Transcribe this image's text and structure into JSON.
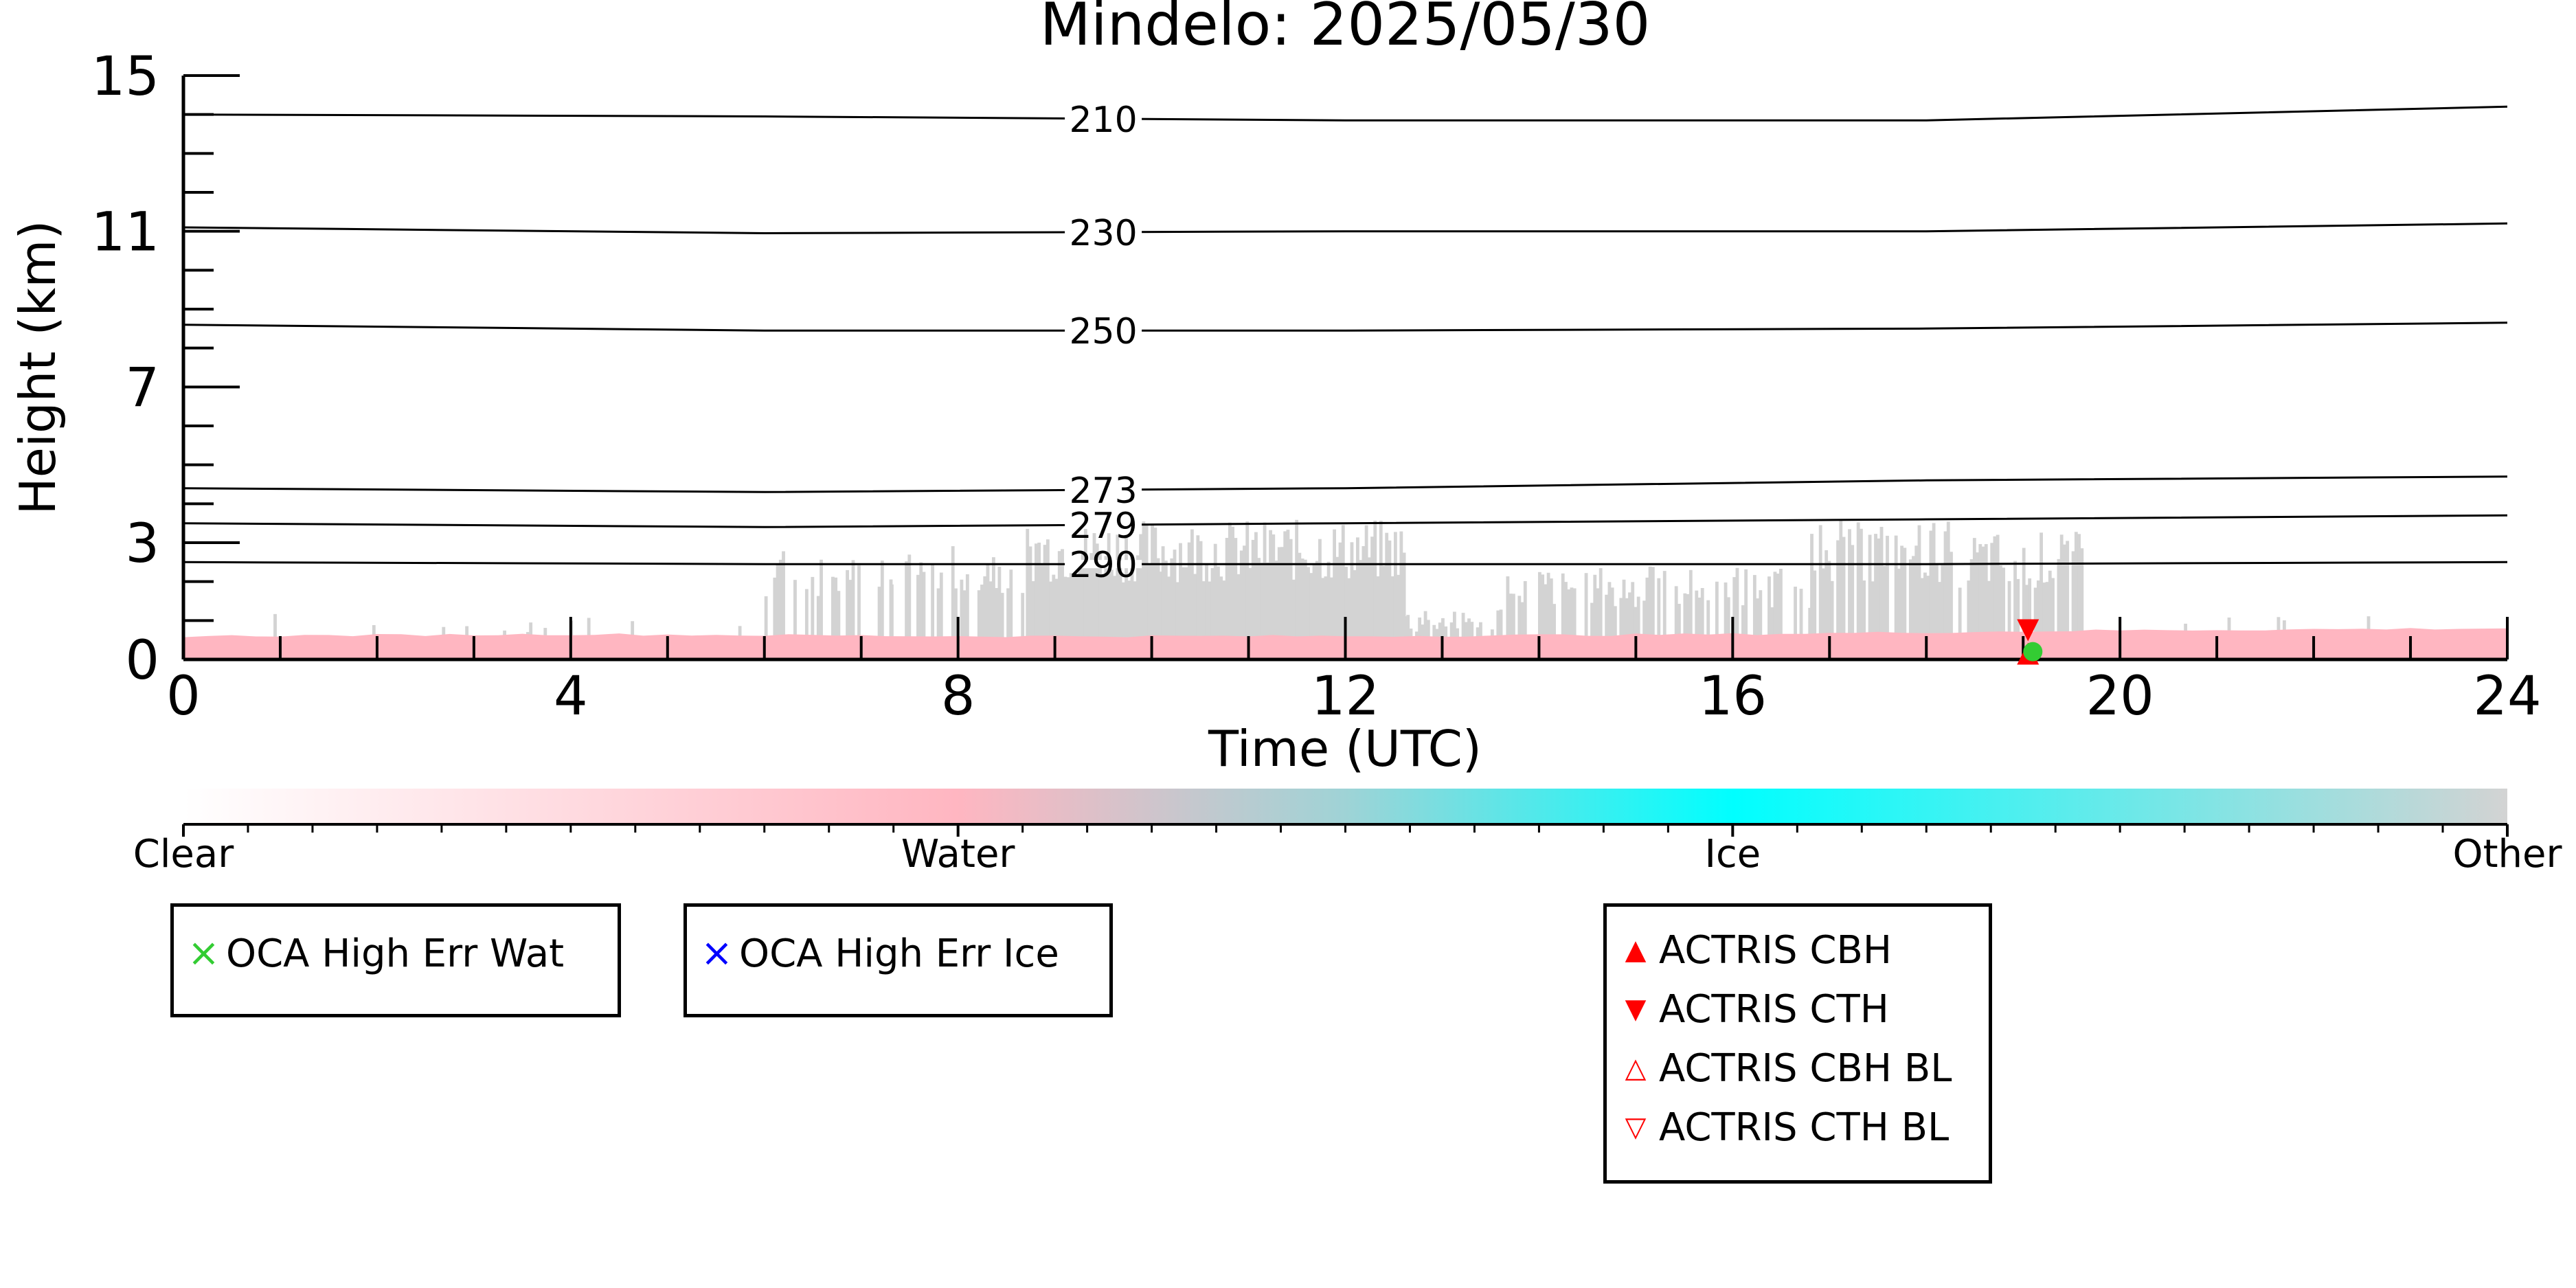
{
  "chart_data": {
    "type": "heatmap",
    "title": "Mindelo: 2025/05/30",
    "xlabel": "Time (UTC)",
    "ylabel": "Height (km)",
    "xlim": [
      0,
      24
    ],
    "ylim": [
      0,
      15
    ],
    "x_ticks": [
      "0",
      "4",
      "8",
      "12",
      "16",
      "20",
      "24"
    ],
    "y_ticks": [
      "0",
      "3",
      "7",
      "11",
      "15"
    ],
    "grid": false,
    "classes": [
      {
        "name": "Clear",
        "color": "#ffffff"
      },
      {
        "name": "Water",
        "color": "#ffb6c1"
      },
      {
        "name": "Ice",
        "color": "#00ffff"
      },
      {
        "name": "Other",
        "color": "#d3d3d3"
      }
    ],
    "water_layer_top_km": [
      {
        "time": 0,
        "value": 0.6
      },
      {
        "time": 4,
        "value": 0.65
      },
      {
        "time": 8,
        "value": 0.6
      },
      {
        "time": 12,
        "value": 0.6
      },
      {
        "time": 16,
        "value": 0.65
      },
      {
        "time": 20,
        "value": 0.75
      },
      {
        "time": 24,
        "value": 0.8
      }
    ],
    "other_regions": [
      {
        "start": 0.3,
        "end": 6.0,
        "top_km": 1.2,
        "density": 0.06
      },
      {
        "start": 6.0,
        "end": 7.3,
        "top_km": 2.9,
        "density": 0.35
      },
      {
        "start": 7.3,
        "end": 8.7,
        "top_km": 3.1,
        "density": 0.6
      },
      {
        "start": 8.7,
        "end": 10.1,
        "top_km": 3.6,
        "density": 1.0
      },
      {
        "start": 10.1,
        "end": 12.6,
        "top_km": 3.6,
        "density": 1.0
      },
      {
        "start": 12.6,
        "end": 13.6,
        "top_km": 1.3,
        "density": 0.7
      },
      {
        "start": 13.6,
        "end": 16.8,
        "top_km": 2.4,
        "density": 0.6
      },
      {
        "start": 16.8,
        "end": 18.3,
        "top_km": 3.6,
        "density": 0.85
      },
      {
        "start": 18.3,
        "end": 19.6,
        "top_km": 3.3,
        "density": 0.8
      },
      {
        "start": 20.0,
        "end": 24.0,
        "top_km": 1.2,
        "density": 0.05
      }
    ],
    "isotherms": [
      {
        "label": "210",
        "heights_km": [
          {
            "time": 0,
            "value": 14.0
          },
          {
            "time": 6,
            "value": 13.95
          },
          {
            "time": 12,
            "value": 13.85
          },
          {
            "time": 18,
            "value": 13.85
          },
          {
            "time": 24,
            "value": 14.2
          }
        ]
      },
      {
        "label": "230",
        "heights_km": [
          {
            "time": 0,
            "value": 11.1
          },
          {
            "time": 6,
            "value": 10.95
          },
          {
            "time": 12,
            "value": 11.0
          },
          {
            "time": 18,
            "value": 11.0
          },
          {
            "time": 24,
            "value": 11.2
          }
        ]
      },
      {
        "label": "250",
        "heights_km": [
          {
            "time": 0,
            "value": 8.6
          },
          {
            "time": 6,
            "value": 8.45
          },
          {
            "time": 12,
            "value": 8.45
          },
          {
            "time": 18,
            "value": 8.5
          },
          {
            "time": 24,
            "value": 8.65
          }
        ]
      },
      {
        "label": "273",
        "heights_km": [
          {
            "time": 0,
            "value": 4.4
          },
          {
            "time": 6,
            "value": 4.3
          },
          {
            "time": 12,
            "value": 4.4
          },
          {
            "time": 18,
            "value": 4.6
          },
          {
            "time": 24,
            "value": 4.7
          }
        ]
      },
      {
        "label": "279",
        "heights_km": [
          {
            "time": 0,
            "value": 3.5
          },
          {
            "time": 6,
            "value": 3.4
          },
          {
            "time": 12,
            "value": 3.5
          },
          {
            "time": 18,
            "value": 3.6
          },
          {
            "time": 24,
            "value": 3.7
          }
        ]
      },
      {
        "label": "290",
        "heights_km": [
          {
            "time": 0,
            "value": 2.5
          },
          {
            "time": 6,
            "value": 2.45
          },
          {
            "time": 12,
            "value": 2.45
          },
          {
            "time": 18,
            "value": 2.45
          },
          {
            "time": 24,
            "value": 2.5
          }
        ]
      }
    ],
    "markers": [
      {
        "series": "ACTRIS CTH",
        "time": 19.05,
        "value": 0.75,
        "symbol": "triangle-down",
        "color": "#ff0000"
      },
      {
        "series": "ACTRIS CBH",
        "time": 19.05,
        "value": 0.15,
        "symbol": "triangle-up",
        "color": "#ff0000"
      },
      {
        "series": "OCA High Err Wat",
        "time": 19.1,
        "value": 0.2,
        "symbol": "dot",
        "color": "#33cc33"
      }
    ],
    "colorbar": {
      "labels": [
        "Clear",
        "Water",
        "Ice",
        "Other"
      ]
    },
    "legends": {
      "oca_water": {
        "label": "OCA High Err Wat",
        "symbol": "×",
        "color": "#33cc33"
      },
      "oca_ice": {
        "label": "OCA High Err Ice",
        "symbol": "×",
        "color": "#0000ff"
      },
      "actris": [
        {
          "label": "ACTRIS CBH",
          "symbol": "▲",
          "color": "#ff0000"
        },
        {
          "label": "ACTRIS CTH",
          "symbol": "▼",
          "color": "#ff0000"
        },
        {
          "label": "ACTRIS CBH BL",
          "symbol": "△",
          "color": "#ff0000"
        },
        {
          "label": "ACTRIS CTH BL",
          "symbol": "▽",
          "color": "#ff0000"
        }
      ]
    }
  }
}
